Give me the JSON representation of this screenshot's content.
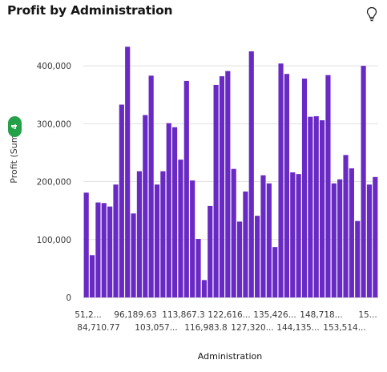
{
  "header": {
    "title": "Profit by Administration",
    "insight_icon": "lightbulb-icon"
  },
  "badge": {
    "count": "4",
    "color": "#24a148"
  },
  "colors": {
    "bar": "#6929c4",
    "grid": "#e0e0e0"
  },
  "chart_data": {
    "type": "bar",
    "title": "Profit by Administration",
    "xlabel": "Administration",
    "ylabel": "Profit (Sum)",
    "ylim": [
      0,
      450000
    ],
    "yticks": [
      0,
      100000,
      200000,
      300000,
      400000
    ],
    "ytick_labels": [
      "0",
      "100,000",
      "200,000",
      "300,000",
      "400,000"
    ],
    "grid": true,
    "x_tick_labels_row1": [
      "51,2...",
      "96,189.63",
      "113,867.3",
      "122,616...",
      "135,426...",
      "148,718...",
      "15..."
    ],
    "x_tick_labels_row2": [
      "84,710.77",
      "103,057...",
      "116,983.8",
      "127,320...",
      "144,135...",
      "153,514..."
    ],
    "values": [
      181000,
      73000,
      164000,
      163000,
      157000,
      195000,
      333000,
      433000,
      145000,
      218000,
      315000,
      383000,
      195000,
      218000,
      301000,
      294000,
      238000,
      374000,
      202000,
      101000,
      30000,
      158000,
      367000,
      382000,
      391000,
      222000,
      131000,
      183000,
      425000,
      141000,
      211000,
      197000,
      87000,
      404000,
      386000,
      216000,
      213000,
      378000,
      312000,
      313000,
      306000,
      384000,
      197000,
      204000,
      246000,
      223000,
      132000,
      400000,
      195000,
      208000
    ]
  }
}
